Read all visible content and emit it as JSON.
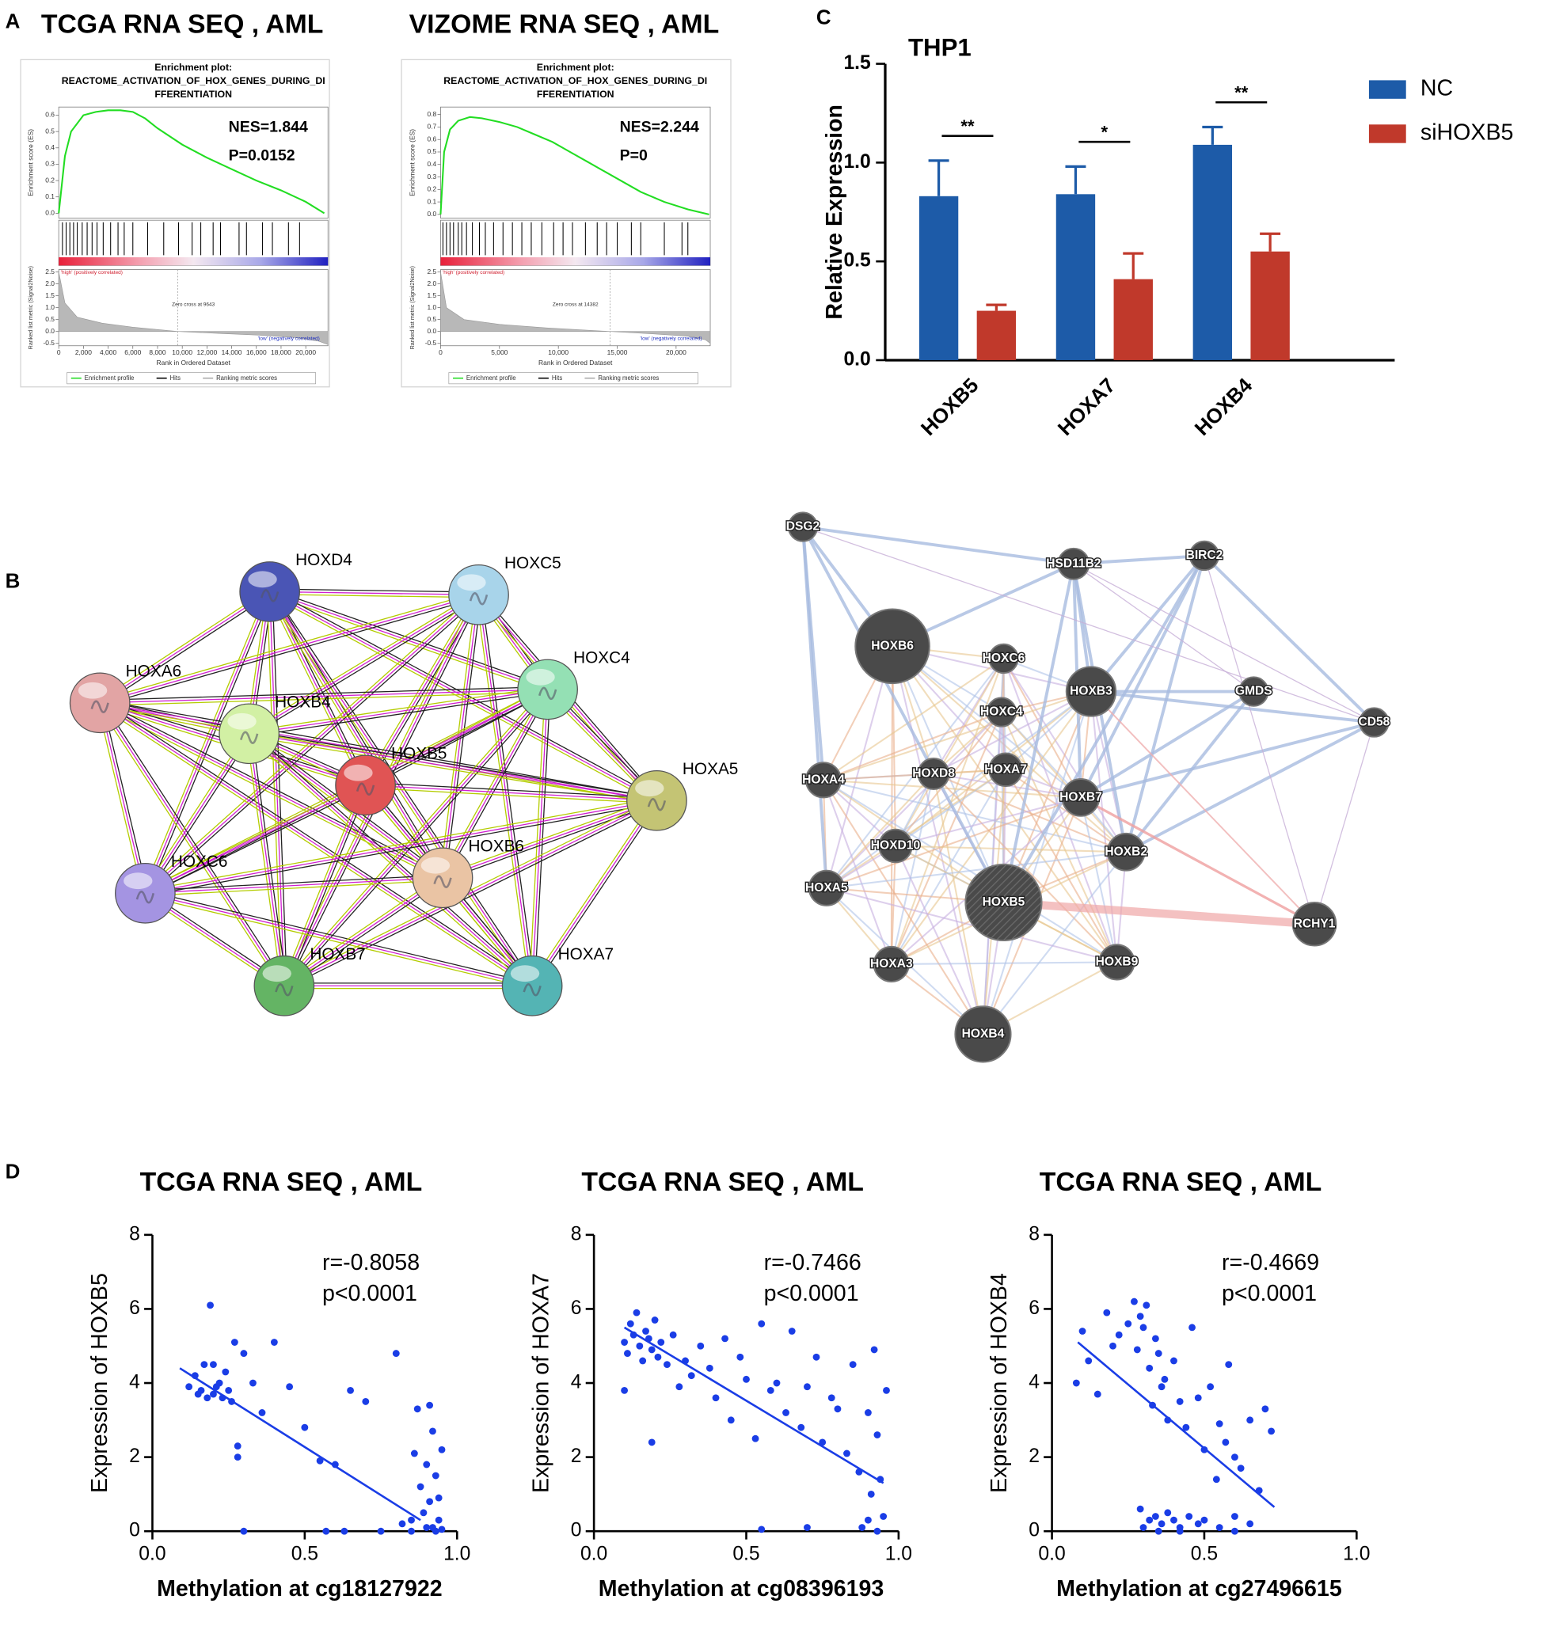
{
  "panel_labels": [
    "A",
    "B",
    "C",
    "D"
  ],
  "chart_data": [
    {
      "type": "line",
      "title": "TCGA RNA SEQ , AML",
      "plot_title": [
        "Enrichment plot:",
        "REACTOME_ACTIVATION_OF_HOX_GENES_DURING_DI",
        "FFERENTIATION"
      ],
      "y_label": "Enrichment score (ES)",
      "metric_label": "Ranked list metric (Signal2Noise)",
      "x_label": "Rank in Ordered Dataset",
      "annotations": [
        "NES=1.844",
        "P=0.0152"
      ],
      "high_label": "'high' (positively correlated)",
      "low_label": "'low' (negatively correlated)",
      "zero_cross": "Zero cross at 9643",
      "legend": [
        "Enrichment profile",
        "Hits",
        "Ranking metric scores"
      ],
      "color": "#22dd22",
      "x": [
        0,
        500,
        1000,
        2000,
        3000,
        4000,
        5000,
        6000,
        7000,
        8000,
        10000,
        12000,
        14000,
        16000,
        18000,
        20000,
        21500
      ],
      "values": [
        0,
        0.35,
        0.5,
        0.6,
        0.62,
        0.63,
        0.63,
        0.62,
        0.58,
        0.52,
        0.42,
        0.34,
        0.27,
        0.2,
        0.14,
        0.07,
        0.0
      ],
      "hits": [
        300,
        600,
        900,
        1200,
        1500,
        1900,
        2300,
        2700,
        3100,
        3600,
        4200,
        4800,
        5300,
        6000,
        7200,
        8500,
        9700,
        10800,
        11500,
        12500,
        13100,
        14600,
        15200,
        16500,
        17300,
        18600,
        19500
      ],
      "metric_x": [
        0,
        500,
        1500,
        3500,
        6000,
        9643,
        13000,
        16000,
        19000,
        21000,
        21800
      ],
      "metric": [
        2.5,
        1.2,
        0.6,
        0.35,
        0.18,
        0,
        -0.08,
        -0.15,
        -0.25,
        -0.4,
        -0.55
      ],
      "xlim": [
        0,
        21800
      ],
      "xticks": [
        0,
        {
          "value": 2000,
          "label": "2,000"
        },
        {
          "value": 4000,
          "label": "4,000"
        },
        {
          "value": 6000,
          "label": "6,000"
        },
        {
          "value": 8000,
          "label": "8,000"
        },
        {
          "value": 10000,
          "label": "10,000"
        },
        {
          "value": 12000,
          "label": "12,000"
        },
        {
          "value": 14000,
          "label": "14,000"
        },
        {
          "value": 16000,
          "label": "16,000"
        },
        {
          "value": 18000,
          "label": "18,000"
        },
        {
          "value": 20000,
          "label": "20,000"
        }
      ],
      "ylim": [
        -0.03,
        0.65
      ],
      "yticks": [
        {
          "value": 0,
          "label": "0.0"
        },
        0.1,
        0.2,
        0.3,
        0.4,
        0.5,
        0.6
      ],
      "metric_lim": [
        -0.6,
        2.6
      ],
      "metric_ticks": [
        2.5,
        {
          "value": 2,
          "label": "2.0"
        },
        1.5,
        {
          "value": 1,
          "label": "1.0"
        },
        0.5,
        {
          "value": 0,
          "label": "0.0"
        },
        -0.5
      ]
    },
    {
      "type": "line",
      "title": "VIZOME RNA SEQ , AML",
      "plot_title": [
        "Enrichment plot:",
        "REACTOME_ACTIVATION_OF_HOX_GENES_DURING_DI",
        "FFERENTIATION"
      ],
      "y_label": "Enrichment score (ES)",
      "metric_label": "Ranked list metric (Signal2Noise)",
      "x_label": "Rank in Ordered Dataset",
      "annotations": [
        "NES=2.244",
        "P=0"
      ],
      "high_label": "'high' (positively correlated)",
      "low_label": "'low' (negatively correlated)",
      "zero_cross": "Zero cross at 14382",
      "legend": [
        "Enrichment profile",
        "Hits",
        "Ranking metric scores"
      ],
      "color": "#22dd22",
      "x": [
        0,
        300,
        800,
        1500,
        2500,
        3500,
        5000,
        6500,
        8000,
        9500,
        11000,
        12500,
        14000,
        15500,
        17000,
        19000,
        21000,
        22800
      ],
      "values": [
        0,
        0.5,
        0.68,
        0.75,
        0.78,
        0.77,
        0.74,
        0.7,
        0.64,
        0.58,
        0.5,
        0.42,
        0.34,
        0.26,
        0.18,
        0.1,
        0.04,
        0.0
      ],
      "hits": [
        200,
        500,
        800,
        1100,
        1500,
        1800,
        2200,
        2700,
        3300,
        3800,
        4500,
        5300,
        6100,
        6900,
        7700,
        8600,
        9600,
        10400,
        11200,
        12300,
        13300,
        14100,
        15000,
        16200,
        17000,
        19000,
        20500,
        21000
      ],
      "metric_x": [
        0,
        500,
        2000,
        5000,
        9000,
        14382,
        18000,
        21000,
        22500,
        22900
      ],
      "metric": [
        2.5,
        1.0,
        0.5,
        0.3,
        0.15,
        0,
        -0.1,
        -0.2,
        -0.35,
        -0.5
      ],
      "xlim": [
        0,
        22900
      ],
      "xticks": [
        0,
        {
          "value": 5000,
          "label": "5,000"
        },
        {
          "value": 10000,
          "label": "10,000"
        },
        {
          "value": 15000,
          "label": "15,000"
        },
        {
          "value": 20000,
          "label": "20,000"
        }
      ],
      "ylim": [
        -0.03,
        0.86
      ],
      "yticks": [
        {
          "value": 0,
          "label": "0.0"
        },
        0.1,
        0.2,
        0.3,
        0.4,
        0.5,
        0.6,
        0.7,
        0.8
      ],
      "metric_lim": [
        -0.6,
        2.6
      ],
      "metric_ticks": [
        2.5,
        {
          "value": 2,
          "label": "2.0"
        },
        1.5,
        {
          "value": 1,
          "label": "1.0"
        },
        0.5,
        {
          "value": 0,
          "label": "0.0"
        },
        -0.5
      ]
    },
    {
      "type": "bar",
      "title": "THP1",
      "y_label": "Relative Expression",
      "categories": [
        "HOXB5",
        "HOXA7",
        "HOXB4"
      ],
      "series": [
        {
          "name": "NC",
          "color": "#1d5ba8",
          "values": [
            0.83,
            0.84,
            1.09
          ],
          "errors": [
            0.18,
            0.14,
            0.09
          ]
        },
        {
          "name": "siHOXB5",
          "color": "#c0392b",
          "values": [
            0.25,
            0.41,
            0.55
          ],
          "errors": [
            0.03,
            0.13,
            0.09
          ]
        }
      ],
      "significance": [
        "**",
        "*",
        "**"
      ],
      "ylim": [
        0,
        1.5
      ],
      "yticks": [
        {
          "value": 0,
          "label": "0.0"
        },
        0.5,
        {
          "value": 1,
          "label": "1.0"
        },
        1.5
      ]
    },
    {
      "type": "scatter",
      "title": "TCGA RNA SEQ , AML",
      "x_label": "Methylation at cg18127922",
      "y_label": "Expression of HOXB5",
      "annotations": [
        "r=-0.8058",
        "p<0.0001"
      ],
      "color": "#1a3de6",
      "x": [
        0.12,
        0.14,
        0.15,
        0.16,
        0.17,
        0.18,
        0.19,
        0.2,
        0.21,
        0.22,
        0.23,
        0.24,
        0.25,
        0.26,
        0.27,
        0.28,
        0.3,
        0.33,
        0.36,
        0.4,
        0.45,
        0.5,
        0.55,
        0.6,
        0.65,
        0.7,
        0.75,
        0.8,
        0.82,
        0.85,
        0.86,
        0.87,
        0.88,
        0.89,
        0.9,
        0.9,
        0.91,
        0.91,
        0.92,
        0.92,
        0.93,
        0.93,
        0.94,
        0.94,
        0.95,
        0.95,
        0.3,
        0.57,
        0.63,
        0.2,
        0.28,
        0.85
      ],
      "values": [
        3.9,
        4.2,
        3.7,
        3.8,
        4.5,
        3.6,
        6.1,
        3.7,
        3.9,
        4.0,
        3.6,
        4.3,
        3.8,
        3.5,
        5.1,
        2.0,
        4.8,
        4.0,
        3.2,
        5.1,
        3.9,
        2.8,
        1.9,
        1.8,
        3.8,
        3.5,
        0.0,
        4.8,
        0.2,
        0.3,
        2.1,
        3.3,
        1.2,
        0.5,
        1.8,
        0.1,
        3.4,
        0.8,
        2.7,
        0.1,
        1.5,
        0.0,
        0.3,
        0.9,
        0.05,
        2.2,
        0.0,
        0.0,
        0.0,
        4.5,
        2.3,
        0.0
      ],
      "fit": {
        "x": [
          0.09,
          0.88
        ],
        "values": [
          4.4,
          0.3
        ]
      },
      "xlim": [
        0,
        1
      ],
      "xticks": [
        {
          "value": 0,
          "label": "0.0"
        },
        0.5,
        {
          "value": 1,
          "label": "1.0"
        }
      ],
      "ylim": [
        0,
        8
      ],
      "yticks": [
        0,
        2,
        4,
        6,
        8
      ]
    },
    {
      "type": "scatter",
      "title": "TCGA RNA SEQ , AML",
      "x_label": "Methylation at cg08396193",
      "y_label": "Expression of HOXA7",
      "annotations": [
        "r=-0.7466",
        "p<0.0001"
      ],
      "color": "#1a3de6",
      "x": [
        0.1,
        0.11,
        0.12,
        0.13,
        0.14,
        0.15,
        0.16,
        0.17,
        0.18,
        0.19,
        0.2,
        0.21,
        0.22,
        0.24,
        0.26,
        0.28,
        0.3,
        0.32,
        0.35,
        0.38,
        0.4,
        0.43,
        0.45,
        0.48,
        0.5,
        0.53,
        0.55,
        0.58,
        0.6,
        0.63,
        0.65,
        0.68,
        0.7,
        0.73,
        0.75,
        0.78,
        0.8,
        0.83,
        0.85,
        0.87,
        0.88,
        0.9,
        0.9,
        0.91,
        0.92,
        0.93,
        0.93,
        0.94,
        0.95,
        0.96,
        0.1,
        0.19,
        0.55,
        0.7
      ],
      "values": [
        5.1,
        4.8,
        5.6,
        5.3,
        5.9,
        5.0,
        4.6,
        5.4,
        5.2,
        4.9,
        5.7,
        4.7,
        5.1,
        4.5,
        5.3,
        3.9,
        4.6,
        4.2,
        5.0,
        4.4,
        3.6,
        5.2,
        3.0,
        4.7,
        4.1,
        2.5,
        5.6,
        3.8,
        4.0,
        3.2,
        5.4,
        2.8,
        3.9,
        4.7,
        2.4,
        3.6,
        3.3,
        2.1,
        4.5,
        1.6,
        0.1,
        3.2,
        0.3,
        1.0,
        4.9,
        2.6,
        0.0,
        1.4,
        0.4,
        3.8,
        3.8,
        2.4,
        0.05,
        0.1
      ],
      "fit": {
        "x": [
          0.1,
          0.95
        ],
        "values": [
          5.5,
          1.3
        ]
      },
      "xlim": [
        0,
        1
      ],
      "xticks": [
        {
          "value": 0,
          "label": "0.0"
        },
        0.5,
        {
          "value": 1,
          "label": "1.0"
        }
      ],
      "ylim": [
        0,
        8
      ],
      "yticks": [
        0,
        2,
        4,
        6,
        8
      ]
    },
    {
      "type": "scatter",
      "title": "TCGA RNA SEQ , AML",
      "x_label": "Methylation at cg27496615",
      "y_label": "Expression of HOXB4",
      "annotations": [
        "r=-0.4669",
        "p<0.0001"
      ],
      "color": "#1a3de6",
      "x": [
        0.08,
        0.1,
        0.12,
        0.15,
        0.18,
        0.2,
        0.22,
        0.25,
        0.27,
        0.28,
        0.29,
        0.3,
        0.31,
        0.32,
        0.33,
        0.34,
        0.35,
        0.36,
        0.37,
        0.38,
        0.4,
        0.42,
        0.44,
        0.46,
        0.48,
        0.5,
        0.52,
        0.54,
        0.55,
        0.57,
        0.58,
        0.6,
        0.62,
        0.65,
        0.68,
        0.7,
        0.72,
        0.3,
        0.32,
        0.34,
        0.36,
        0.38,
        0.4,
        0.42,
        0.45,
        0.48,
        0.5,
        0.55,
        0.6,
        0.65,
        0.35,
        0.42,
        0.29,
        0.6
      ],
      "values": [
        4.0,
        5.4,
        4.6,
        3.7,
        5.9,
        5.0,
        5.3,
        5.6,
        6.2,
        4.9,
        5.8,
        5.5,
        6.1,
        4.4,
        3.4,
        5.2,
        4.8,
        3.9,
        4.1,
        3.0,
        4.6,
        3.5,
        2.8,
        5.5,
        3.6,
        2.2,
        3.9,
        1.4,
        2.9,
        2.4,
        4.5,
        2.0,
        1.7,
        3.0,
        1.1,
        3.3,
        2.7,
        0.1,
        0.3,
        0.4,
        0.2,
        0.5,
        0.3,
        0.1,
        0.4,
        0.2,
        0.3,
        0.1,
        0.4,
        0.2,
        0.0,
        0.0,
        0.6,
        0.0
      ],
      "fit": {
        "x": [
          0.085,
          0.73
        ],
        "values": [
          5.1,
          0.65
        ]
      },
      "xlim": [
        0,
        1
      ],
      "xticks": [
        {
          "value": 0,
          "label": "0.0"
        },
        0.5,
        {
          "value": 1,
          "label": "1.0"
        }
      ],
      "ylim": [
        0,
        8
      ],
      "yticks": [
        0,
        2,
        4,
        6,
        8
      ]
    }
  ],
  "networks": [
    {
      "nodes": [
        {
          "label": "HOXD4",
          "color": "#4a55b5"
        },
        {
          "label": "HOXC5",
          "color": "#a8d4ea"
        },
        {
          "label": "HOXA6",
          "color": "#e2a4a4"
        },
        {
          "label": "HOXC4",
          "color": "#94e0b4"
        },
        {
          "label": "HOXB4",
          "color": "#d2f0a4"
        },
        {
          "label": "HOXB5",
          "color": "#e05454"
        },
        {
          "label": "HOXA5",
          "color": "#c4c474"
        },
        {
          "label": "HOXC6",
          "color": "#a494e2"
        },
        {
          "label": "HOXB6",
          "color": "#eac4a4"
        },
        {
          "label": "HOXB7",
          "color": "#64b464"
        },
        {
          "label": "HOXA7",
          "color": "#54b4b4"
        }
      ]
    },
    {
      "nodes": [
        {
          "label": "DSG2"
        },
        {
          "label": "HSD11B2"
        },
        {
          "label": "BIRC2"
        },
        {
          "label": "HOXB6"
        },
        {
          "label": "HOXC6"
        },
        {
          "label": "HOXB3"
        },
        {
          "label": "GMDS"
        },
        {
          "label": "CD58"
        },
        {
          "label": "HOXC4"
        },
        {
          "label": "HOXA4"
        },
        {
          "label": "HOXD8"
        },
        {
          "label": "HOXA7"
        },
        {
          "label": "HOXB7"
        },
        {
          "label": "HOXD10"
        },
        {
          "label": "HOXB2"
        },
        {
          "label": "HOXA5"
        },
        {
          "label": "HOXB5"
        },
        {
          "label": "RCHY1"
        },
        {
          "label": "HOXA3"
        },
        {
          "label": "HOXB9"
        },
        {
          "label": "HOXB4"
        }
      ]
    }
  ]
}
